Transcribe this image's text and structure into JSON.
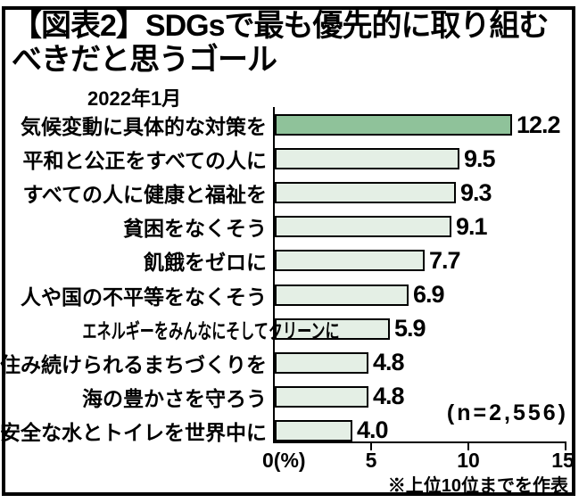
{
  "figure": {
    "title_line1": "【図表2】SDGsで最も優先的に取り組む",
    "title_line2": "べきだと思うゴール",
    "subtitle": "2022年1月",
    "sample_size": "(n=2,556)",
    "footnote": "※上位10位までを作表"
  },
  "chart_data": {
    "type": "bar",
    "orientation": "horizontal",
    "title": "SDGsで最も優先的に取り組むべきだと思うゴール",
    "subtitle": "2022年1月",
    "categories": [
      "気候変動に具体的な対策を",
      "平和と公正をすべての人に",
      "すべての人に健康と福祉を",
      "貧困をなくそう",
      "飢餓をゼロに",
      "人や国の不平等をなくそう",
      "エネルギーをみんなにそしてクリーンに",
      "住み続けられるまちづくりを",
      "海の豊かさを守ろう",
      "安全な水とトイレを世界中に"
    ],
    "values": [
      12.2,
      9.5,
      9.3,
      9.1,
      7.7,
      6.9,
      5.9,
      4.8,
      4.8,
      4.0
    ],
    "value_labels": [
      "12.2",
      "9.5",
      "9.3",
      "9.1",
      "7.7",
      "6.9",
      "5.9",
      "4.8",
      "4.8",
      "4.0"
    ],
    "unit": "%",
    "xlim": [
      0,
      15
    ],
    "tick_labels": [
      "0(%)",
      "5",
      "10",
      "15"
    ],
    "grid": false,
    "legend": "none",
    "highlight_index": 0,
    "highlight_color": "#8FC29A",
    "bar_color": "#E4EFE5",
    "bar_border_color": "#000000",
    "sample_size": "n=2,556"
  }
}
